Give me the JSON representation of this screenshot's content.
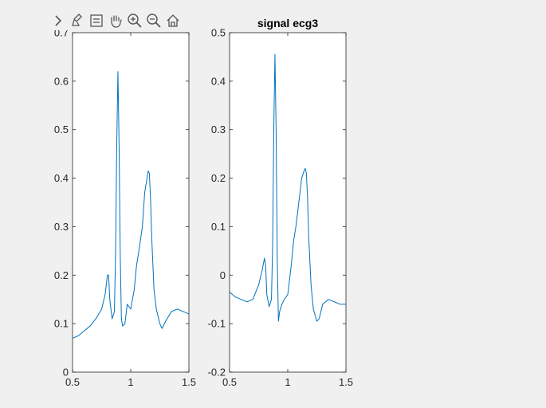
{
  "toolbar": {
    "icons": [
      "expand-chevron-icon",
      "brush-icon",
      "legend-icon",
      "pan-hand-icon",
      "zoom-in-icon",
      "zoom-out-icon",
      "home-icon"
    ]
  },
  "colors": {
    "figure_bg": "#f0f0f0",
    "axes_bg": "#ffffff",
    "line": "#0072bd",
    "axis": "#262626"
  },
  "chart_data": [
    {
      "type": "line",
      "title": "",
      "xlabel": "",
      "ylabel": "",
      "xlim": [
        0.5,
        1.5
      ],
      "ylim": [
        0,
        0.7
      ],
      "xticks": [
        0.5,
        1,
        1.5
      ],
      "xtick_labels": [
        "0.5",
        "1",
        "1.5"
      ],
      "yticks": [
        0,
        0.1,
        0.2,
        0.3,
        0.4,
        0.5,
        0.6,
        0.7
      ],
      "ytick_labels": [
        "0",
        "0.1",
        "0.2",
        "0.3",
        "0.4",
        "0.5",
        "0.6",
        "0.7"
      ],
      "grid": false,
      "series": [
        {
          "x": [
            0.5,
            0.55,
            0.6,
            0.65,
            0.7,
            0.75,
            0.78,
            0.8,
            0.81,
            0.82,
            0.84,
            0.86,
            0.87,
            0.88,
            0.89,
            0.9,
            0.91,
            0.92,
            0.93,
            0.95,
            0.97,
            1.0,
            1.03,
            1.05,
            1.07,
            1.1,
            1.12,
            1.14,
            1.15,
            1.16,
            1.17,
            1.18,
            1.2,
            1.22,
            1.25,
            1.27,
            1.3,
            1.35,
            1.4,
            1.45,
            1.5
          ],
          "y": [
            0.07,
            0.075,
            0.085,
            0.095,
            0.11,
            0.13,
            0.16,
            0.2,
            0.2,
            0.15,
            0.11,
            0.125,
            0.25,
            0.47,
            0.62,
            0.47,
            0.24,
            0.11,
            0.095,
            0.1,
            0.14,
            0.13,
            0.17,
            0.22,
            0.25,
            0.3,
            0.37,
            0.4,
            0.415,
            0.41,
            0.36,
            0.28,
            0.17,
            0.13,
            0.1,
            0.09,
            0.105,
            0.125,
            0.13,
            0.125,
            0.12
          ]
        }
      ]
    },
    {
      "type": "line",
      "title": "signal ecg3",
      "xlabel": "",
      "ylabel": "",
      "xlim": [
        0.5,
        1.5
      ],
      "ylim": [
        -0.2,
        0.5
      ],
      "xticks": [
        0.5,
        1,
        1.5
      ],
      "xtick_labels": [
        "0.5",
        "1",
        "1.5"
      ],
      "yticks": [
        -0.2,
        -0.1,
        0,
        0.1,
        0.2,
        0.3,
        0.4,
        0.5
      ],
      "ytick_labels": [
        "-0.2",
        "-0.1",
        "0",
        "0.1",
        "0.2",
        "0.3",
        "0.4",
        "0.5"
      ],
      "grid": false,
      "series": [
        {
          "x": [
            0.5,
            0.55,
            0.6,
            0.65,
            0.7,
            0.75,
            0.78,
            0.8,
            0.81,
            0.82,
            0.84,
            0.86,
            0.87,
            0.88,
            0.89,
            0.9,
            0.91,
            0.92,
            0.93,
            0.95,
            0.97,
            1.0,
            1.03,
            1.05,
            1.07,
            1.1,
            1.12,
            1.14,
            1.15,
            1.16,
            1.17,
            1.18,
            1.2,
            1.22,
            1.25,
            1.27,
            1.3,
            1.35,
            1.4,
            1.45,
            1.5
          ],
          "y": [
            -0.035,
            -0.045,
            -0.05,
            -0.055,
            -0.05,
            -0.02,
            0.01,
            0.035,
            0.02,
            -0.04,
            -0.065,
            -0.05,
            0.06,
            0.3,
            0.455,
            0.3,
            0.03,
            -0.095,
            -0.075,
            -0.06,
            -0.05,
            -0.04,
            0.02,
            0.07,
            0.1,
            0.16,
            0.2,
            0.215,
            0.22,
            0.21,
            0.16,
            0.08,
            -0.02,
            -0.07,
            -0.095,
            -0.09,
            -0.06,
            -0.05,
            -0.055,
            -0.06,
            -0.06
          ]
        }
      ]
    }
  ]
}
